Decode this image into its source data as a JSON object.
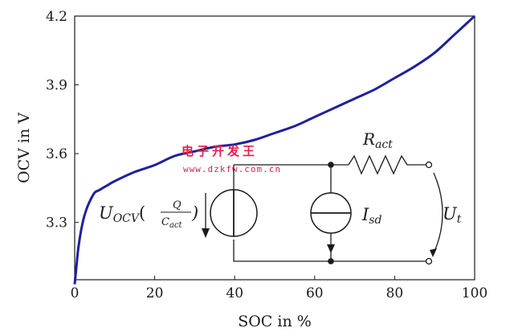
{
  "chart_data": {
    "type": "line",
    "title": "",
    "xlabel": "SOC in %",
    "ylabel": "OCV in V",
    "xlim": [
      0,
      100
    ],
    "ylim": [
      3.05,
      4.2
    ],
    "x_ticks": [
      0,
      20,
      40,
      60,
      80,
      100
    ],
    "y_ticks": [
      3.3,
      3.6,
      3.9,
      4.2
    ],
    "y_tick_labels": [
      "3.3",
      "3.6",
      "3.9",
      "4.2"
    ],
    "grid": false,
    "series": [
      {
        "color": "#1f1f9e",
        "x": [
          0,
          0.5,
          1,
          2,
          3,
          4,
          5,
          6,
          8,
          10,
          15,
          20,
          25,
          30,
          35,
          40,
          45,
          50,
          55,
          60,
          65,
          70,
          75,
          80,
          85,
          90,
          95,
          100
        ],
        "y": [
          3.03,
          3.12,
          3.2,
          3.3,
          3.36,
          3.4,
          3.43,
          3.44,
          3.46,
          3.48,
          3.52,
          3.55,
          3.59,
          3.61,
          3.63,
          3.64,
          3.66,
          3.69,
          3.72,
          3.76,
          3.8,
          3.84,
          3.88,
          3.93,
          3.98,
          4.04,
          4.12,
          4.2
        ]
      }
    ]
  },
  "circuit": {
    "uocv_main": "U",
    "uocv_sub": "OCV",
    "frac_num": "Q",
    "frac_den_main": "C",
    "frac_den_sub": "act",
    "r_main": "R",
    "r_sub": "act",
    "isd_main": "I",
    "isd_sub": "sd",
    "ut_main": "U",
    "ut_sub": "t"
  },
  "watermark": {
    "site_name": "电子开发王",
    "url": "www.dzkfw.com.cn"
  }
}
